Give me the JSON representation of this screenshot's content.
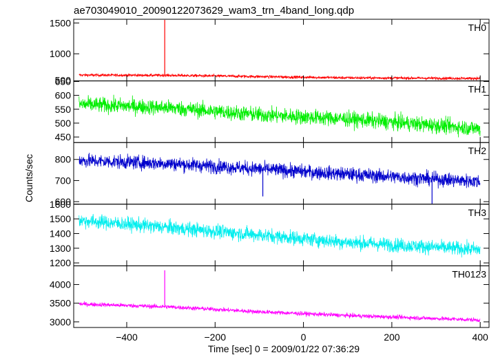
{
  "chart_data": {
    "type": "line",
    "title": "ae703049010_20090122073629_wam3_trn_4band_long.qdp",
    "xlabel": "Time [sec] 0 = 2009/01/22 07:36:29",
    "ylabel": "Counts/sec",
    "xlim": [
      -520,
      420
    ],
    "xticks": [
      -400,
      -200,
      0,
      200,
      400
    ],
    "grid": false,
    "panels": [
      {
        "name": "TH0",
        "color": "#ff0000",
        "ylim": [
          560,
          1560
        ],
        "yticks": [
          1000,
          1500
        ],
        "extra_tick_label": "500",
        "x_range": [
          -508,
          400
        ],
        "trend": [
          [
            -508,
            655
          ],
          [
            -300,
            650
          ],
          [
            -100,
            630
          ],
          [
            100,
            610
          ],
          [
            400,
            600
          ]
        ],
        "noise": 45,
        "spikes": [
          {
            "x": -314,
            "y": 1550
          }
        ]
      },
      {
        "name": "TH1",
        "color": "#00ee00",
        "ylim": [
          430,
          652
        ],
        "yticks": [
          450,
          500,
          550,
          600,
          650
        ],
        "x_range": [
          -508,
          400
        ],
        "trend": [
          [
            -508,
            568
          ],
          [
            -300,
            555
          ],
          [
            -100,
            530
          ],
          [
            100,
            515
          ],
          [
            400,
            480
          ]
        ],
        "noise": 55,
        "spikes": []
      },
      {
        "name": "TH2",
        "color": "#0000cc",
        "ylim": [
          588,
          880
        ],
        "yticks": [
          600,
          700,
          800
        ],
        "x_range": [
          -508,
          400
        ],
        "trend": [
          [
            -508,
            795
          ],
          [
            -300,
            780
          ],
          [
            -100,
            755
          ],
          [
            100,
            730
          ],
          [
            400,
            695
          ]
        ],
        "noise": 65,
        "spikes": [
          {
            "x": -92,
            "y": 625
          },
          {
            "x": 291,
            "y": 590
          }
        ]
      },
      {
        "name": "TH3",
        "color": "#00eeee",
        "ylim": [
          1180,
          1600
        ],
        "yticks": [
          1200,
          1300,
          1400,
          1500,
          1600
        ],
        "x_range": [
          -508,
          400
        ],
        "trend": [
          [
            -508,
            1490
          ],
          [
            -300,
            1440
          ],
          [
            -100,
            1390
          ],
          [
            100,
            1340
          ],
          [
            400,
            1290
          ]
        ],
        "noise": 95,
        "spikes": []
      },
      {
        "name": "TH0123",
        "color": "#ff00ff",
        "ylim": [
          2850,
          4500
        ],
        "yticks": [
          3000,
          3500,
          4000
        ],
        "x_range": [
          -508,
          400
        ],
        "trend": [
          [
            -508,
            3480
          ],
          [
            -300,
            3400
          ],
          [
            -100,
            3270
          ],
          [
            100,
            3170
          ],
          [
            400,
            3050
          ]
        ],
        "noise": 110,
        "spikes": [
          {
            "x": -314,
            "y": 4380
          }
        ]
      }
    ]
  }
}
